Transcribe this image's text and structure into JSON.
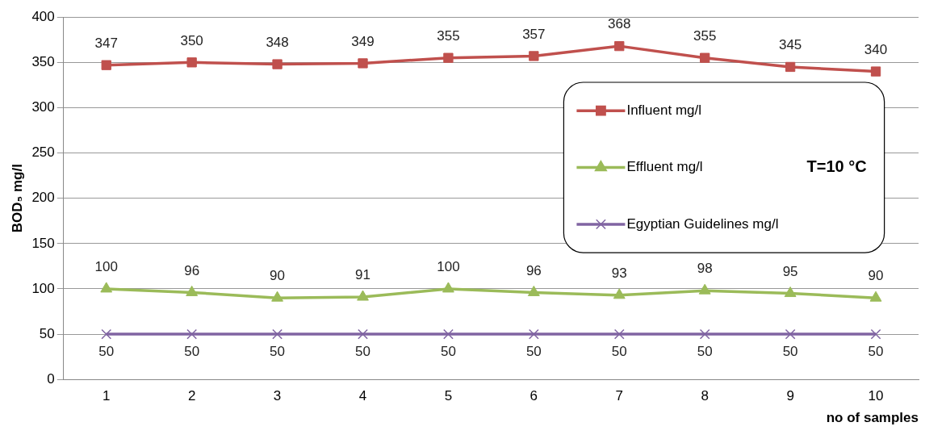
{
  "chart_data": {
    "type": "line",
    "xlabel": "no of samples",
    "ylabel": "BOD₅ mg/l",
    "categories": [
      "1",
      "2",
      "3",
      "4",
      "5",
      "6",
      "7",
      "8",
      "9",
      "10"
    ],
    "series": [
      {
        "name": "Influent mg/l",
        "color": "#c0504d",
        "marker": "square",
        "values": [
          347,
          350,
          348,
          349,
          355,
          357,
          368,
          355,
          345,
          340
        ]
      },
      {
        "name": "Effluent mg/l",
        "color": "#9bbb59",
        "marker": "triangle",
        "values": [
          100,
          96,
          90,
          91,
          100,
          96,
          93,
          98,
          95,
          90
        ]
      },
      {
        "name": "Egyptian Guidelines mg/l",
        "color": "#8064a2",
        "marker": "cross",
        "values": [
          50,
          50,
          50,
          50,
          50,
          50,
          50,
          50,
          50,
          50
        ]
      }
    ],
    "ylim": [
      0,
      400
    ],
    "yticks": [
      0,
      50,
      100,
      150,
      200,
      250,
      300,
      350,
      400
    ],
    "grid": "y",
    "legend": "right",
    "data_labels": true,
    "annotations": [
      "T=10 °C"
    ]
  }
}
